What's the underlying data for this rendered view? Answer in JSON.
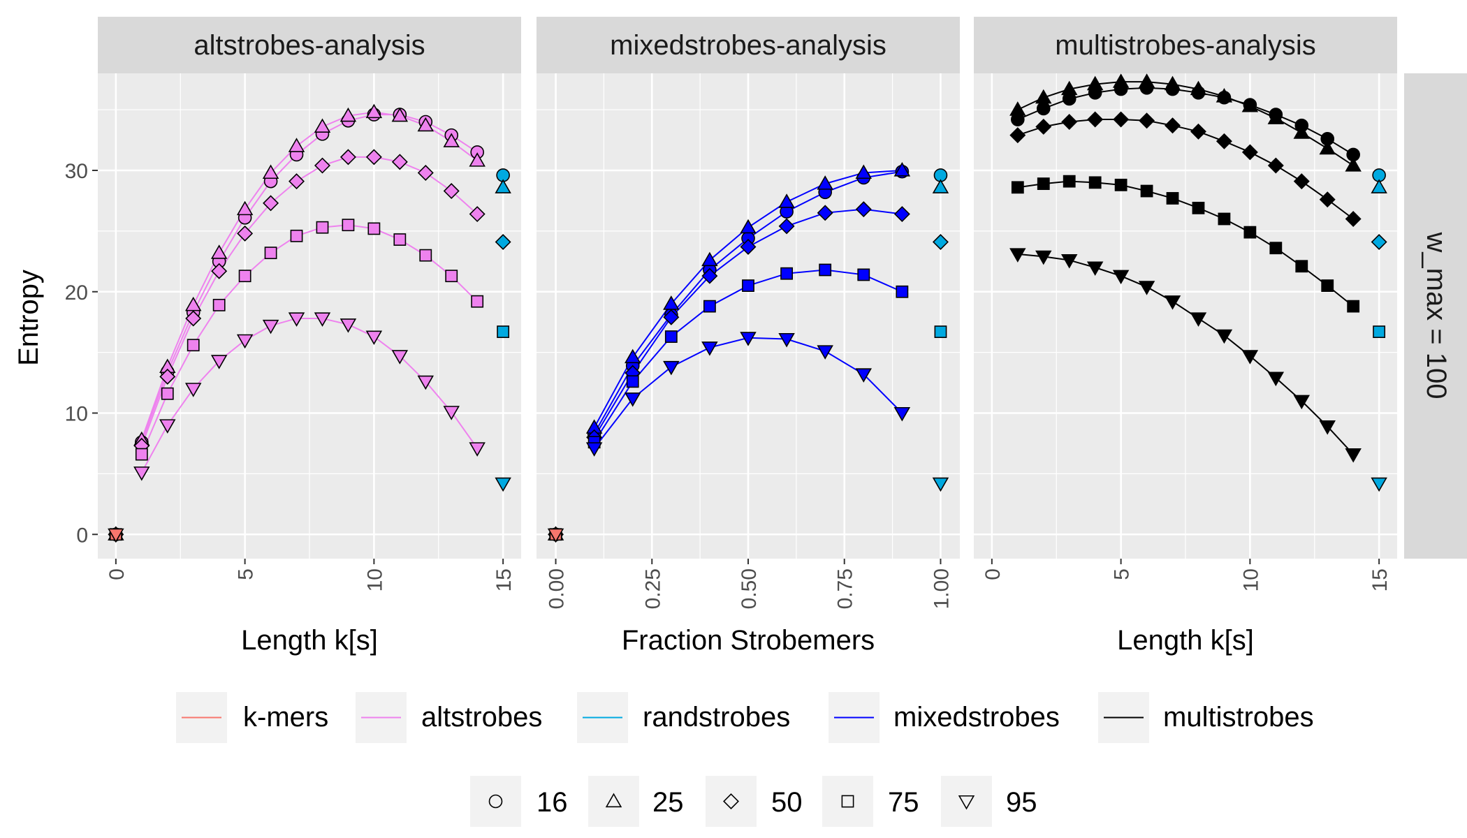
{
  "colors": {
    "kmers": "#F8766D",
    "altstrobes": "#EE82EE",
    "randstrobes": "#00A9E0",
    "mixedstrobes": "#0000FF",
    "multistrobes": "#000000",
    "panel_bg": "#EBEBEB",
    "strip_bg": "#D9D9D9",
    "grid": "#FFFFFF"
  },
  "labels": {
    "ylabel": "Entropy",
    "row_strip": "w_max = 100"
  },
  "legend": {
    "methods": [
      {
        "key": "kmers",
        "label": "k-mers"
      },
      {
        "key": "altstrobes",
        "label": "altstrobes"
      },
      {
        "key": "randstrobes",
        "label": "randstrobes"
      },
      {
        "key": "mixedstrobes",
        "label": "mixedstrobes"
      },
      {
        "key": "multistrobes",
        "label": "multistrobes"
      }
    ],
    "sizes": [
      {
        "shape": "circle",
        "label": "16"
      },
      {
        "shape": "triangle",
        "label": "25"
      },
      {
        "shape": "diamond",
        "label": "50"
      },
      {
        "shape": "square",
        "label": "75"
      },
      {
        "shape": "triangle-down",
        "label": "95"
      }
    ]
  },
  "chart_data": [
    {
      "type": "line",
      "title": "altstrobes-analysis",
      "xlabel": "Length k[s]",
      "ylabel": "Entropy",
      "xlim": [
        -0.7,
        15.7
      ],
      "ylim": [
        -2,
        38
      ],
      "xticks": [
        0,
        5,
        10,
        15
      ],
      "xtick_labels": [
        "0",
        "5",
        "10",
        "15"
      ],
      "yticks": [
        0,
        10,
        20,
        30
      ],
      "ytick_labels": [
        "0",
        "10",
        "20",
        "30"
      ],
      "method": "altstrobes",
      "series": [
        {
          "name": "16",
          "shape": "circle",
          "x": [
            1,
            2,
            3,
            4,
            5,
            6,
            7,
            8,
            9,
            10,
            11,
            12,
            13,
            14
          ],
          "y": [
            7.6,
            13.4,
            18.3,
            22.5,
            26.1,
            29.1,
            31.3,
            33.0,
            34.1,
            34.6,
            34.6,
            34.0,
            32.9,
            31.5
          ]
        },
        {
          "name": "25",
          "shape": "triangle",
          "x": [
            1,
            2,
            3,
            4,
            5,
            6,
            7,
            8,
            9,
            10,
            11,
            12,
            13,
            14
          ],
          "y": [
            7.8,
            13.8,
            18.9,
            23.2,
            26.8,
            29.8,
            32.0,
            33.6,
            34.5,
            34.8,
            34.5,
            33.7,
            32.4,
            30.8
          ]
        },
        {
          "name": "50",
          "shape": "diamond",
          "x": [
            1,
            2,
            3,
            4,
            5,
            6,
            7,
            8,
            9,
            10,
            11,
            12,
            13,
            14
          ],
          "y": [
            7.3,
            13.0,
            17.8,
            21.7,
            24.8,
            27.3,
            29.1,
            30.4,
            31.1,
            31.1,
            30.7,
            29.8,
            28.3,
            26.4
          ]
        },
        {
          "name": "75",
          "shape": "square",
          "x": [
            1,
            2,
            3,
            4,
            5,
            6,
            7,
            8,
            9,
            10,
            11,
            12,
            13,
            14
          ],
          "y": [
            6.6,
            11.6,
            15.6,
            18.9,
            21.3,
            23.2,
            24.6,
            25.3,
            25.5,
            25.2,
            24.3,
            23.0,
            21.3,
            19.2
          ]
        },
        {
          "name": "95",
          "shape": "triangle-down",
          "x": [
            1,
            2,
            3,
            4,
            5,
            6,
            7,
            8,
            9,
            10,
            11,
            12,
            13,
            14
          ],
          "y": [
            5.1,
            9.0,
            12.0,
            14.3,
            16.0,
            17.2,
            17.8,
            17.8,
            17.3,
            16.3,
            14.7,
            12.6,
            10.1,
            7.1
          ]
        }
      ],
      "kmer_points": [
        {
          "name": "16",
          "x": 0,
          "y": 0
        },
        {
          "name": "25",
          "x": 0,
          "y": 0
        },
        {
          "name": "50",
          "x": 0,
          "y": 0
        },
        {
          "name": "75",
          "x": 0,
          "y": 0
        },
        {
          "name": "95",
          "x": 0,
          "y": 0
        }
      ],
      "randstrobe_points": [
        {
          "name": "16",
          "x": 15,
          "y": 29.6
        },
        {
          "name": "25",
          "x": 15,
          "y": 28.6
        },
        {
          "name": "50",
          "x": 15,
          "y": 24.1
        },
        {
          "name": "75",
          "x": 15,
          "y": 16.7
        },
        {
          "name": "95",
          "x": 15,
          "y": 4.2
        }
      ]
    },
    {
      "type": "line",
      "title": "mixedstrobes-analysis",
      "xlabel": "Fraction Strobemers",
      "ylabel": "Entropy",
      "xlim": [
        -0.05,
        1.05
      ],
      "ylim": [
        -2,
        38
      ],
      "xticks": [
        0,
        0.25,
        0.5,
        0.75,
        1.0
      ],
      "xtick_labels": [
        "0.00",
        "0.25",
        "0.50",
        "0.75",
        "1.00"
      ],
      "yticks": [
        0,
        10,
        20,
        30
      ],
      "ytick_labels": [
        "0",
        "10",
        "20",
        "30"
      ],
      "method": "mixedstrobes",
      "series": [
        {
          "name": "16",
          "shape": "circle",
          "x": [
            0.1,
            0.2,
            0.3,
            0.4,
            0.5,
            0.6,
            0.7,
            0.8,
            0.9
          ],
          "y": [
            8.3,
            13.9,
            18.1,
            21.8,
            24.4,
            26.6,
            28.2,
            29.4,
            29.9
          ]
        },
        {
          "name": "25",
          "shape": "triangle",
          "x": [
            0.1,
            0.2,
            0.3,
            0.4,
            0.5,
            0.6,
            0.7,
            0.8,
            0.9
          ],
          "y": [
            8.8,
            14.6,
            19.0,
            22.6,
            25.3,
            27.4,
            28.9,
            29.8,
            30.0
          ]
        },
        {
          "name": "50",
          "shape": "diamond",
          "x": [
            0.1,
            0.2,
            0.3,
            0.4,
            0.5,
            0.6,
            0.7,
            0.8,
            0.9
          ],
          "y": [
            8.0,
            13.3,
            17.9,
            21.3,
            23.7,
            25.4,
            26.5,
            26.8,
            26.4
          ]
        },
        {
          "name": "75",
          "shape": "square",
          "x": [
            0.1,
            0.2,
            0.3,
            0.4,
            0.5,
            0.6,
            0.7,
            0.8,
            0.9
          ],
          "y": [
            7.6,
            12.6,
            16.3,
            18.8,
            20.5,
            21.5,
            21.8,
            21.4,
            20.0
          ]
        },
        {
          "name": "95",
          "shape": "triangle-down",
          "x": [
            0.1,
            0.2,
            0.3,
            0.4,
            0.5,
            0.6,
            0.7,
            0.8,
            0.9
          ],
          "y": [
            7.1,
            11.2,
            13.8,
            15.4,
            16.2,
            16.1,
            15.1,
            13.2,
            10.0
          ]
        }
      ],
      "kmer_points": [
        {
          "name": "16",
          "x": 0,
          "y": 0
        },
        {
          "name": "25",
          "x": 0,
          "y": 0
        },
        {
          "name": "50",
          "x": 0,
          "y": 0
        },
        {
          "name": "75",
          "x": 0,
          "y": 0
        },
        {
          "name": "95",
          "x": 0,
          "y": 0
        }
      ],
      "randstrobe_points": [
        {
          "name": "16",
          "x": 1.0,
          "y": 29.6
        },
        {
          "name": "25",
          "x": 1.0,
          "y": 28.6
        },
        {
          "name": "50",
          "x": 1.0,
          "y": 24.1
        },
        {
          "name": "75",
          "x": 1.0,
          "y": 16.7
        },
        {
          "name": "95",
          "x": 1.0,
          "y": 4.2
        }
      ]
    },
    {
      "type": "line",
      "title": "multistrobes-analysis",
      "xlabel": "Length k[s]",
      "ylabel": "Entropy",
      "xlim": [
        -0.7,
        15.7
      ],
      "ylim": [
        -2,
        38
      ],
      "xticks": [
        0,
        5,
        10,
        15
      ],
      "xtick_labels": [
        "0",
        "5",
        "10",
        "15"
      ],
      "yticks": [
        0,
        10,
        20,
        30
      ],
      "ytick_labels": [
        "0",
        "10",
        "20",
        "30"
      ],
      "method": "multistrobes",
      "series": [
        {
          "name": "16",
          "shape": "circle",
          "x": [
            1,
            2,
            3,
            4,
            5,
            6,
            7,
            8,
            9,
            10,
            11,
            12,
            13,
            14
          ],
          "y": [
            34.2,
            35.1,
            35.9,
            36.4,
            36.7,
            36.8,
            36.7,
            36.4,
            36.0,
            35.4,
            34.6,
            33.7,
            32.6,
            31.3
          ]
        },
        {
          "name": "25",
          "shape": "triangle",
          "x": [
            1,
            2,
            3,
            4,
            5,
            6,
            7,
            8,
            9,
            10,
            11,
            12,
            13,
            14
          ],
          "y": [
            35.0,
            36.0,
            36.7,
            37.1,
            37.3,
            37.3,
            37.1,
            36.7,
            36.1,
            35.3,
            34.3,
            33.1,
            31.8,
            30.4
          ]
        },
        {
          "name": "50",
          "shape": "diamond",
          "x": [
            1,
            2,
            3,
            4,
            5,
            6,
            7,
            8,
            9,
            10,
            11,
            12,
            13,
            14
          ],
          "y": [
            32.9,
            33.6,
            34.0,
            34.2,
            34.2,
            34.1,
            33.7,
            33.2,
            32.4,
            31.5,
            30.4,
            29.1,
            27.6,
            26.0
          ]
        },
        {
          "name": "75",
          "shape": "square",
          "x": [
            1,
            2,
            3,
            4,
            5,
            6,
            7,
            8,
            9,
            10,
            11,
            12,
            13,
            14
          ],
          "y": [
            28.6,
            28.9,
            29.1,
            29.0,
            28.8,
            28.3,
            27.7,
            26.9,
            26.0,
            24.9,
            23.6,
            22.1,
            20.5,
            18.8
          ]
        },
        {
          "name": "95",
          "shape": "triangle-down",
          "x": [
            1,
            2,
            3,
            4,
            5,
            6,
            7,
            8,
            9,
            10,
            11,
            12,
            13,
            14
          ],
          "y": [
            23.1,
            22.9,
            22.6,
            22.0,
            21.3,
            20.4,
            19.2,
            17.8,
            16.4,
            14.7,
            12.9,
            11.0,
            8.9,
            6.6
          ]
        }
      ],
      "randstrobe_points": [
        {
          "name": "16",
          "x": 15,
          "y": 29.6
        },
        {
          "name": "25",
          "x": 15,
          "y": 28.6
        },
        {
          "name": "50",
          "x": 15,
          "y": 24.1
        },
        {
          "name": "75",
          "x": 15,
          "y": 16.7
        },
        {
          "name": "95",
          "x": 15,
          "y": 4.2
        }
      ]
    }
  ]
}
